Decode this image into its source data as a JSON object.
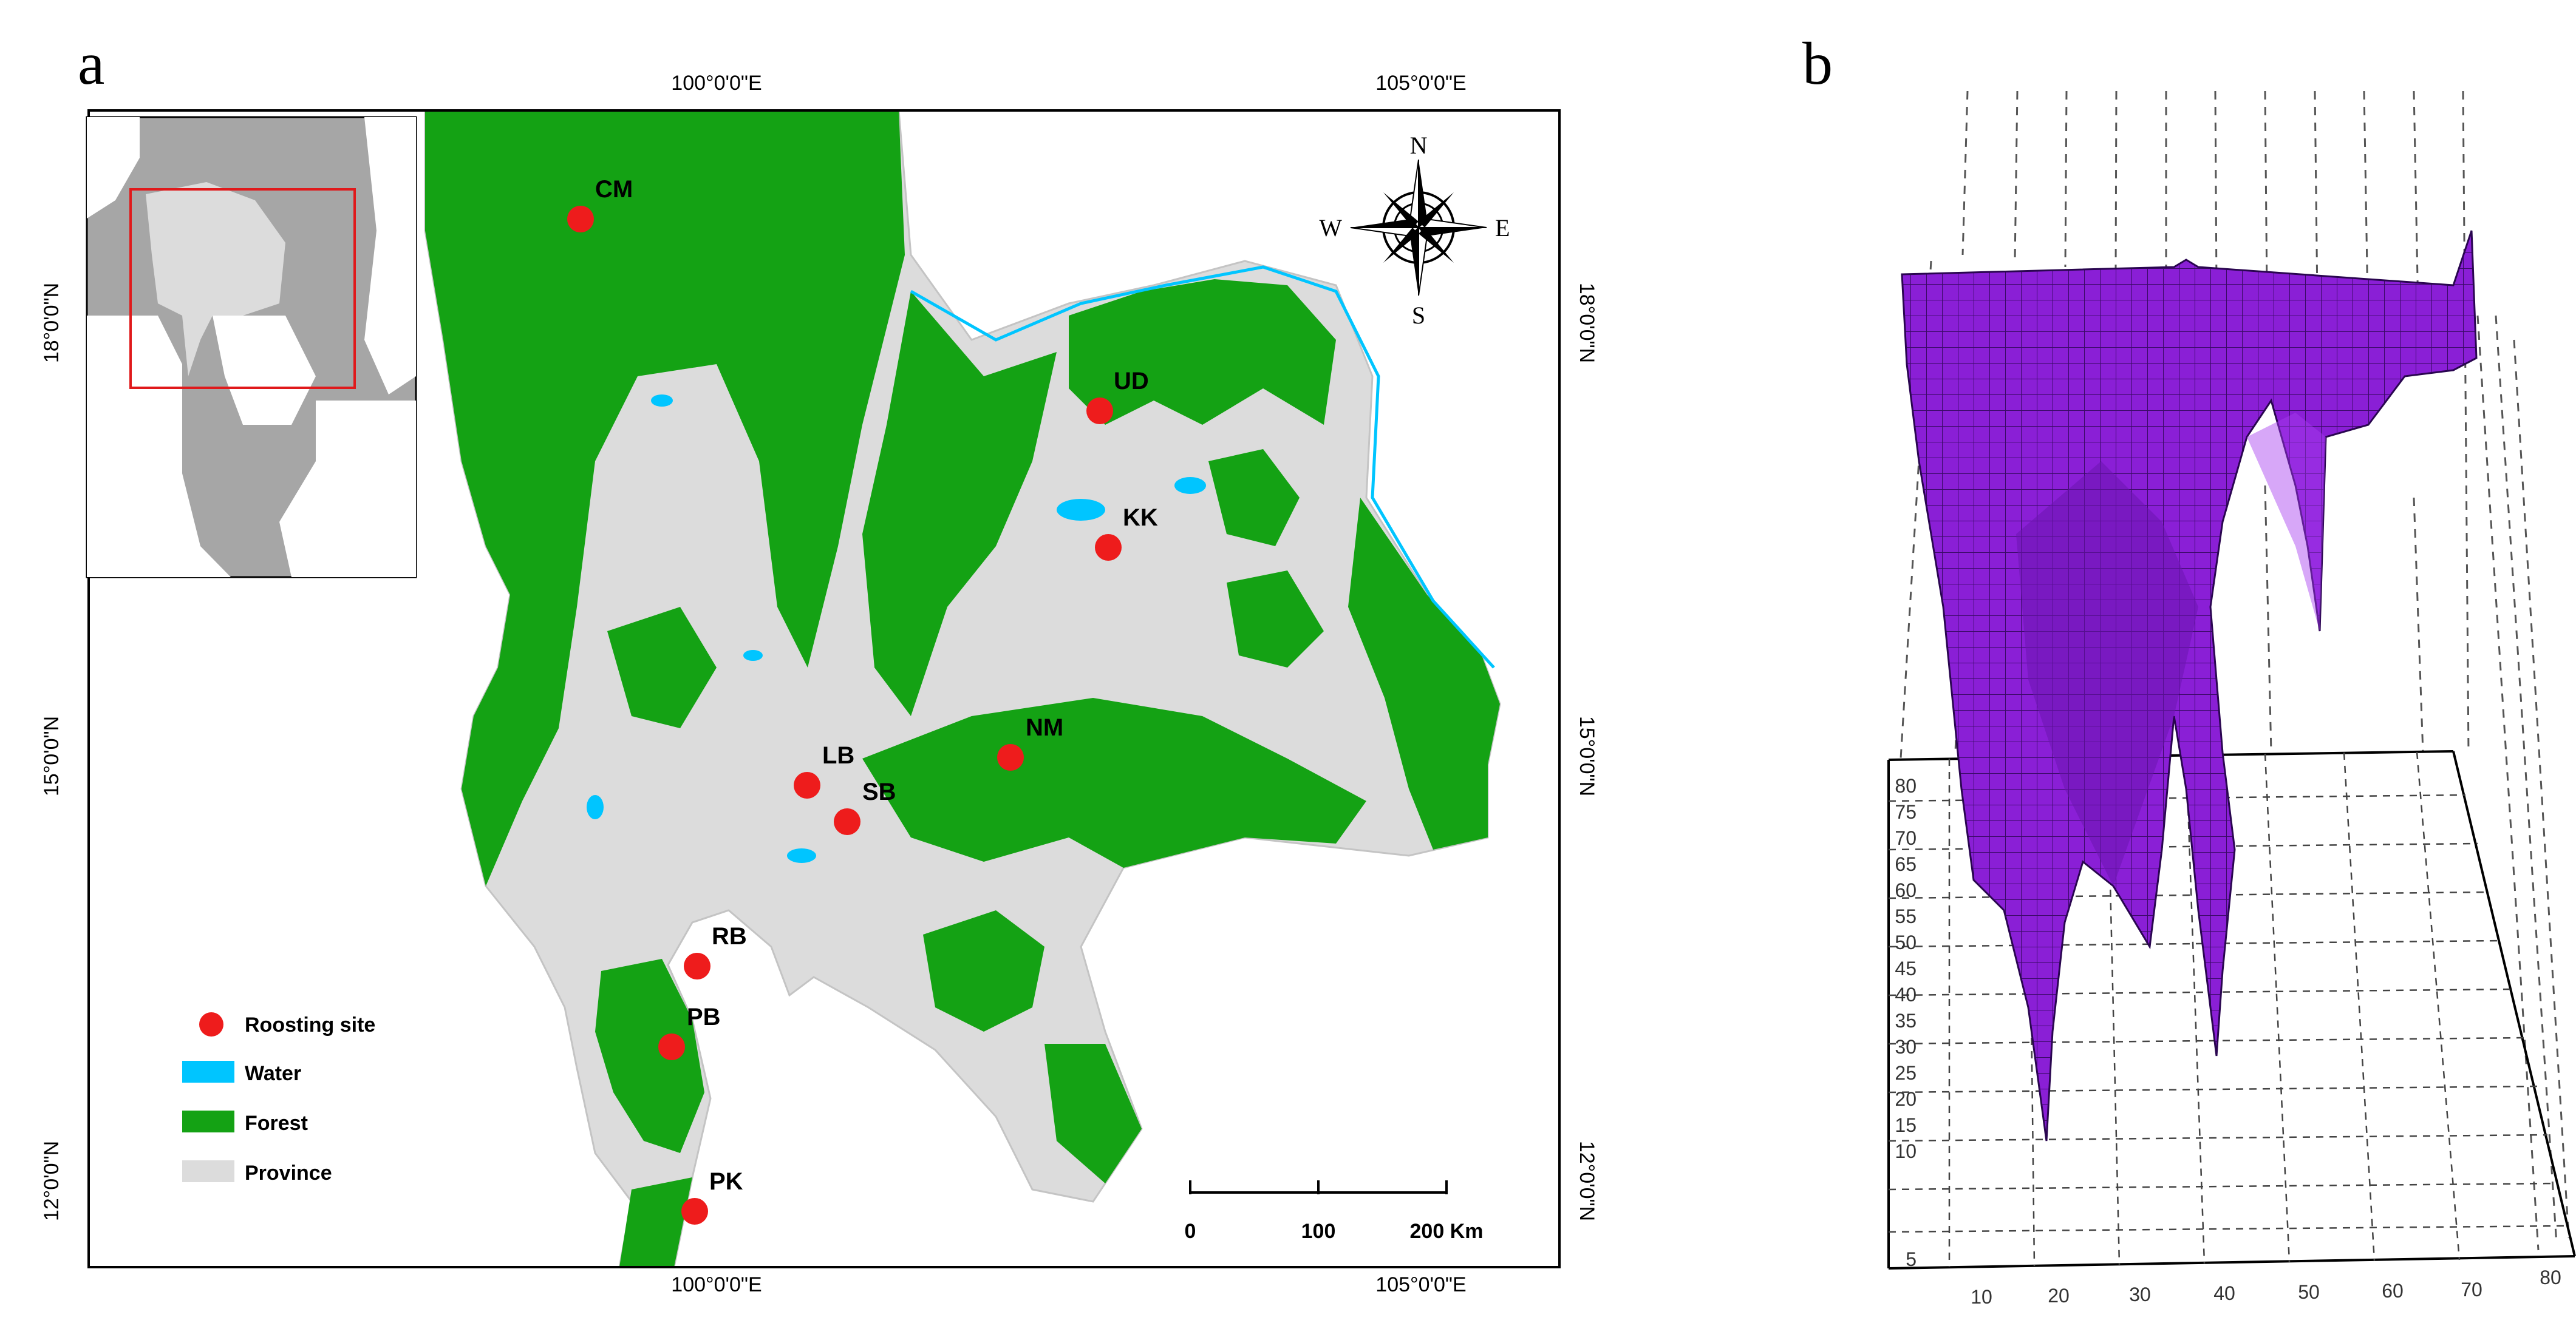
{
  "panel_a": {
    "label": "a",
    "coord_top": {
      "lon_100": "100°0'0\"E",
      "lon_105": "105°0'0\"E"
    },
    "coord_bottom": {
      "lon_100": "100°0'0\"E",
      "lon_105": "105°0'0\"E"
    },
    "coord_left": {
      "lat_18": "18°0'0\"N",
      "lat_15": "15°0'0\"N",
      "lat_12": "12°0'0\"N"
    },
    "coord_right": {
      "lat_18": "18°0'0\"N",
      "lat_15": "15°0'0\"N",
      "lat_12": "12°0'0\"N"
    },
    "compass": {
      "n": "N",
      "s": "S",
      "e": "E",
      "w": "W"
    },
    "sites": [
      {
        "code": "CM"
      },
      {
        "code": "UD"
      },
      {
        "code": "KK"
      },
      {
        "code": "NM"
      },
      {
        "code": "LB"
      },
      {
        "code": "SB"
      },
      {
        "code": "RB"
      },
      {
        "code": "PB"
      },
      {
        "code": "PK"
      }
    ],
    "legend": [
      {
        "label": "Roosting site",
        "color": "#ee1c1c",
        "shape": "circle"
      },
      {
        "label": "Water",
        "color": "#00c5ff",
        "shape": "rect"
      },
      {
        "label": "Forest",
        "color": "#14a214",
        "shape": "rect"
      },
      {
        "label": "Province",
        "color": "#dcdcdc",
        "shape": "rect"
      }
    ],
    "scalebar": {
      "t0": "0",
      "t1": "100",
      "t2": "200 Km"
    },
    "colors": {
      "forest": "#14a214",
      "province": "#dcdcdc",
      "water": "#00c5ff",
      "site": "#ee1c1c",
      "inset_land": "#a6a6a6",
      "inset_sea": "#ffffff",
      "inset_box": "#e0191b"
    }
  },
  "panel_b": {
    "label": "b",
    "z_ticks": [
      "80",
      "75",
      "70",
      "65",
      "60",
      "55",
      "50",
      "45",
      "40",
      "35",
      "30",
      "25",
      "20",
      "15",
      "10",
      "5"
    ],
    "x_ticks": [
      "10",
      "20",
      "30",
      "40",
      "50",
      "60",
      "70",
      "80"
    ],
    "surface_color": "#8a1fd6"
  }
}
